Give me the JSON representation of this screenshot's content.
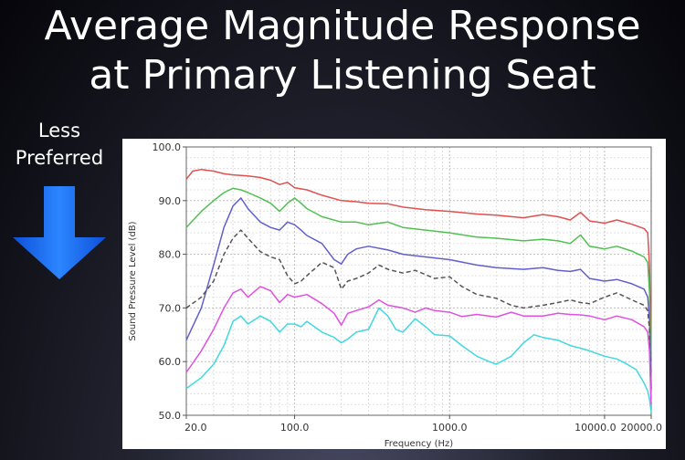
{
  "slide": {
    "title_line1": "Average Magnitude Response",
    "title_line2": "at Primary Listening Seat",
    "side_label_line1": "Less",
    "side_label_line2": "Preferred",
    "arrow_color": "#1a6cf0"
  },
  "chart_data": {
    "type": "line",
    "title": "",
    "xlabel": "Frequency (Hz)",
    "ylabel": "Sound Pressure Level (dB)",
    "xscale": "log",
    "xlim": [
      20,
      20000
    ],
    "ylim": [
      50,
      100
    ],
    "xticks": [
      {
        "value": 20,
        "label": "20.0"
      },
      {
        "value": 100,
        "label": "100.0"
      },
      {
        "value": 1000,
        "label": "1000.0"
      },
      {
        "value": 10000,
        "label": "10000.0"
      },
      {
        "value": 20000,
        "label": "20000.0"
      }
    ],
    "yticks": [
      {
        "value": 100,
        "label": "100.0"
      },
      {
        "value": 90,
        "label": "90.0"
      },
      {
        "value": 80,
        "label": "80.0"
      },
      {
        "value": 70,
        "label": "70.0"
      },
      {
        "value": 60,
        "label": "60.0"
      },
      {
        "value": 50,
        "label": "50.0"
      }
    ],
    "grid": true,
    "series": [
      {
        "color": "#e05050",
        "dash": false,
        "points": [
          [
            20,
            94
          ],
          [
            22,
            95.5
          ],
          [
            25,
            95.8
          ],
          [
            30,
            95.5
          ],
          [
            35,
            95
          ],
          [
            40,
            94.8
          ],
          [
            50,
            94.6
          ],
          [
            60,
            94.3
          ],
          [
            70,
            93.8
          ],
          [
            80,
            93
          ],
          [
            90,
            93.4
          ],
          [
            100,
            92.4
          ],
          [
            120,
            92
          ],
          [
            150,
            91
          ],
          [
            200,
            90
          ],
          [
            250,
            89.8
          ],
          [
            300,
            89.5
          ],
          [
            400,
            89.4
          ],
          [
            500,
            88.8
          ],
          [
            700,
            88.3
          ],
          [
            1000,
            88
          ],
          [
            1500,
            87.5
          ],
          [
            2000,
            87.3
          ],
          [
            3000,
            86.8
          ],
          [
            4000,
            87.4
          ],
          [
            5000,
            87
          ],
          [
            6000,
            86.4
          ],
          [
            7000,
            87.8
          ],
          [
            8000,
            86.2
          ],
          [
            10000,
            85.8
          ],
          [
            12000,
            86.4
          ],
          [
            15000,
            85.6
          ],
          [
            18000,
            84.8
          ],
          [
            19000,
            84
          ],
          [
            19500,
            78
          ],
          [
            20000,
            60
          ]
        ]
      },
      {
        "color": "#50c050",
        "dash": false,
        "points": [
          [
            20,
            85
          ],
          [
            25,
            88
          ],
          [
            30,
            90
          ],
          [
            35,
            91.5
          ],
          [
            40,
            92.3
          ],
          [
            45,
            92
          ],
          [
            50,
            91.5
          ],
          [
            60,
            90.5
          ],
          [
            70,
            89.5
          ],
          [
            80,
            88
          ],
          [
            90,
            89.5
          ],
          [
            100,
            90.5
          ],
          [
            110,
            89.5
          ],
          [
            120,
            88.5
          ],
          [
            150,
            87
          ],
          [
            200,
            86
          ],
          [
            250,
            86
          ],
          [
            300,
            85.5
          ],
          [
            400,
            86
          ],
          [
            500,
            85
          ],
          [
            700,
            84.5
          ],
          [
            1000,
            84
          ],
          [
            1500,
            83.2
          ],
          [
            2000,
            83
          ],
          [
            3000,
            82.5
          ],
          [
            4000,
            82.8
          ],
          [
            5000,
            82.5
          ],
          [
            6000,
            82
          ],
          [
            7000,
            83.6
          ],
          [
            8000,
            81.5
          ],
          [
            10000,
            81
          ],
          [
            12000,
            81.5
          ],
          [
            15000,
            80.6
          ],
          [
            18000,
            79.5
          ],
          [
            19000,
            78.5
          ],
          [
            19500,
            73
          ],
          [
            20000,
            58
          ]
        ]
      },
      {
        "color": "#6060cc",
        "dash": false,
        "points": [
          [
            20,
            64
          ],
          [
            25,
            70
          ],
          [
            30,
            78
          ],
          [
            35,
            85
          ],
          [
            40,
            89
          ],
          [
            45,
            90.5
          ],
          [
            50,
            88.5
          ],
          [
            60,
            86
          ],
          [
            70,
            85
          ],
          [
            80,
            84.5
          ],
          [
            90,
            86
          ],
          [
            100,
            85.5
          ],
          [
            110,
            84.5
          ],
          [
            120,
            83.5
          ],
          [
            150,
            82
          ],
          [
            180,
            79
          ],
          [
            200,
            78.2
          ],
          [
            220,
            80
          ],
          [
            250,
            81
          ],
          [
            300,
            81.5
          ],
          [
            400,
            80.8
          ],
          [
            500,
            80
          ],
          [
            700,
            79.5
          ],
          [
            1000,
            79
          ],
          [
            1500,
            78
          ],
          [
            2000,
            77.5
          ],
          [
            3000,
            77.2
          ],
          [
            4000,
            77.5
          ],
          [
            5000,
            77
          ],
          [
            6000,
            76.8
          ],
          [
            7000,
            77.2
          ],
          [
            8000,
            75.5
          ],
          [
            10000,
            75
          ],
          [
            12000,
            75.3
          ],
          [
            15000,
            74.5
          ],
          [
            18000,
            73.5
          ],
          [
            19000,
            72
          ],
          [
            19500,
            68
          ],
          [
            20000,
            55
          ]
        ]
      },
      {
        "color": "#555555",
        "dash": true,
        "points": [
          [
            20,
            70
          ],
          [
            25,
            72
          ],
          [
            30,
            75
          ],
          [
            35,
            80
          ],
          [
            40,
            83
          ],
          [
            45,
            84.5
          ],
          [
            50,
            83
          ],
          [
            60,
            80.5
          ],
          [
            70,
            79.5
          ],
          [
            80,
            79
          ],
          [
            90,
            76
          ],
          [
            100,
            74.5
          ],
          [
            110,
            75
          ],
          [
            120,
            76
          ],
          [
            150,
            78.5
          ],
          [
            180,
            77.5
          ],
          [
            200,
            73.5
          ],
          [
            220,
            75
          ],
          [
            250,
            75.5
          ],
          [
            300,
            76.5
          ],
          [
            350,
            78
          ],
          [
            400,
            77.2
          ],
          [
            500,
            76.5
          ],
          [
            600,
            77
          ],
          [
            700,
            76.2
          ],
          [
            800,
            75.5
          ],
          [
            1000,
            75.8
          ],
          [
            1200,
            74
          ],
          [
            1500,
            72.5
          ],
          [
            2000,
            71.8
          ],
          [
            2500,
            70.5
          ],
          [
            3000,
            70
          ],
          [
            4000,
            70.5
          ],
          [
            5000,
            71
          ],
          [
            6000,
            71.5
          ],
          [
            7000,
            71
          ],
          [
            8000,
            70.8
          ],
          [
            10000,
            72
          ],
          [
            12000,
            72.8
          ],
          [
            15000,
            71.5
          ],
          [
            18000,
            70.5
          ],
          [
            19000,
            69.5
          ],
          [
            19500,
            66
          ],
          [
            20000,
            52
          ]
        ]
      },
      {
        "color": "#e050e0",
        "dash": false,
        "points": [
          [
            20,
            58
          ],
          [
            25,
            62
          ],
          [
            30,
            66
          ],
          [
            35,
            70
          ],
          [
            40,
            72.8
          ],
          [
            45,
            73.5
          ],
          [
            50,
            72
          ],
          [
            60,
            74
          ],
          [
            70,
            73.2
          ],
          [
            80,
            71
          ],
          [
            90,
            72.5
          ],
          [
            100,
            72
          ],
          [
            120,
            72.5
          ],
          [
            150,
            70.8
          ],
          [
            180,
            69
          ],
          [
            200,
            66.8
          ],
          [
            220,
            69
          ],
          [
            250,
            69.5
          ],
          [
            300,
            70.2
          ],
          [
            350,
            71.5
          ],
          [
            400,
            70.5
          ],
          [
            500,
            70
          ],
          [
            600,
            69.2
          ],
          [
            700,
            70
          ],
          [
            800,
            69.5
          ],
          [
            1000,
            69.2
          ],
          [
            1200,
            68.4
          ],
          [
            1500,
            68.8
          ],
          [
            2000,
            68.3
          ],
          [
            2500,
            69.2
          ],
          [
            3000,
            68.5
          ],
          [
            4000,
            68.5
          ],
          [
            5000,
            69
          ],
          [
            6000,
            68.8
          ],
          [
            7000,
            68.7
          ],
          [
            8000,
            68.5
          ],
          [
            10000,
            67.8
          ],
          [
            12000,
            68.5
          ],
          [
            15000,
            67.8
          ],
          [
            18000,
            66.5
          ],
          [
            19000,
            65.5
          ],
          [
            19500,
            62
          ],
          [
            20000,
            51
          ]
        ]
      },
      {
        "color": "#40d8e0",
        "dash": false,
        "points": [
          [
            20,
            55
          ],
          [
            25,
            57
          ],
          [
            30,
            59.5
          ],
          [
            35,
            63
          ],
          [
            40,
            67.5
          ],
          [
            45,
            68.5
          ],
          [
            50,
            67
          ],
          [
            60,
            68.5
          ],
          [
            70,
            67.5
          ],
          [
            80,
            65.5
          ],
          [
            90,
            67
          ],
          [
            100,
            67
          ],
          [
            110,
            66.5
          ],
          [
            120,
            67.5
          ],
          [
            150,
            65.5
          ],
          [
            180,
            64.5
          ],
          [
            200,
            63.5
          ],
          [
            220,
            64.2
          ],
          [
            250,
            65.5
          ],
          [
            300,
            66
          ],
          [
            350,
            70
          ],
          [
            400,
            68.5
          ],
          [
            450,
            66
          ],
          [
            500,
            65.5
          ],
          [
            600,
            68
          ],
          [
            700,
            66.5
          ],
          [
            800,
            65
          ],
          [
            1000,
            64.8
          ],
          [
            1200,
            63
          ],
          [
            1500,
            61
          ],
          [
            1800,
            60
          ],
          [
            2000,
            59.5
          ],
          [
            2500,
            61
          ],
          [
            3000,
            63.5
          ],
          [
            3500,
            65
          ],
          [
            4000,
            64.5
          ],
          [
            5000,
            64
          ],
          [
            6000,
            63
          ],
          [
            7000,
            62.5
          ],
          [
            8000,
            62
          ],
          [
            10000,
            61
          ],
          [
            12000,
            60.5
          ],
          [
            14000,
            59.5
          ],
          [
            16000,
            58.5
          ],
          [
            18000,
            56
          ],
          [
            19000,
            54.5
          ],
          [
            19500,
            53
          ],
          [
            20000,
            50.5
          ]
        ]
      }
    ]
  }
}
